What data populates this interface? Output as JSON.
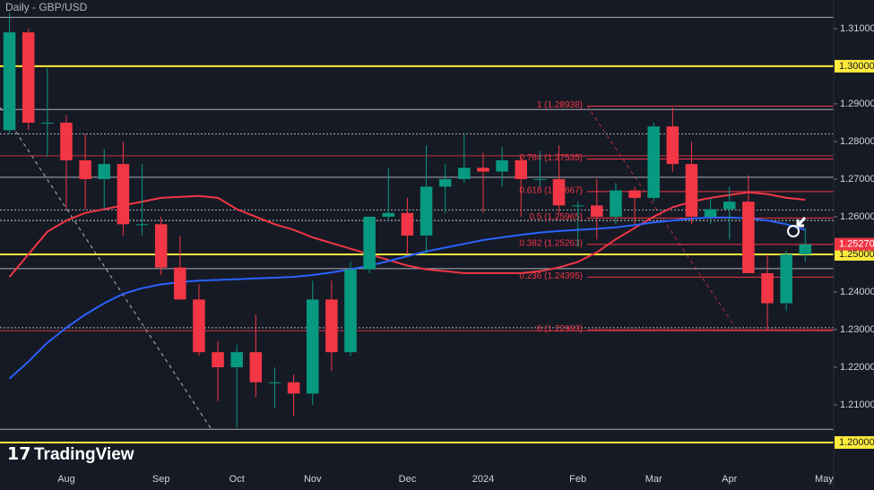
{
  "chart_data": {
    "type": "candlestick",
    "title": "Daily - GBP/USD",
    "brand": "TradingView",
    "ylim": [
      1.1938,
      1.3176
    ],
    "yticks": [
      {
        "value": 1.31,
        "label": "1.31000"
      },
      {
        "value": 1.29,
        "label": "1.29000"
      },
      {
        "value": 1.28,
        "label": "1.28000"
      },
      {
        "value": 1.27,
        "label": "1.27000"
      },
      {
        "value": 1.26,
        "label": "1.26000"
      },
      {
        "value": 1.24,
        "label": "1.24000"
      },
      {
        "value": 1.23,
        "label": "1.23000"
      },
      {
        "value": 1.22,
        "label": "1.22000"
      },
      {
        "value": 1.21,
        "label": "1.21000"
      }
    ],
    "levels": [
      {
        "value": 1.3,
        "label": "1.30000",
        "color": "#ffeb3b"
      },
      {
        "value": 1.25,
        "label": "1.25000",
        "color": "#ffeb3b"
      },
      {
        "value": 1.2,
        "label": "1.20000",
        "color": "#ffeb3b"
      }
    ],
    "lines": [
      {
        "value": 1.313,
        "color": "#d1d4dc",
        "style": "solid"
      },
      {
        "value": 1.2885,
        "color": "#d1d4dc",
        "style": "solid"
      },
      {
        "value": 1.282,
        "color": "#d1d4dc",
        "style": "dotted"
      },
      {
        "value": 1.2762,
        "color": "#f23645",
        "style": "solid"
      },
      {
        "value": 1.2705,
        "color": "#d1d4dc",
        "style": "solid"
      },
      {
        "value": 1.2618,
        "color": "#d1d4dc",
        "style": "dotted"
      },
      {
        "value": 1.259,
        "color": "#ffffff",
        "style": "dotted"
      },
      {
        "value": 1.2462,
        "color": "#d1d4dc",
        "style": "solid"
      },
      {
        "value": 1.2305,
        "color": "#d1d4dc",
        "style": "dotted"
      },
      {
        "value": 1.2297,
        "color": "#f23645",
        "style": "solid"
      },
      {
        "value": 1.2035,
        "color": "#d1d4dc",
        "style": "solid"
      }
    ],
    "fib_levels": [
      {
        "value": 1.28938,
        "label": "1 (1.28938)"
      },
      {
        "value": 1.27535,
        "label": "0.764 (1.27535)"
      },
      {
        "value": 1.26667,
        "label": "0.618 (1.26667)"
      },
      {
        "value": 1.25965,
        "label": "0.5 (1.25965)"
      },
      {
        "value": 1.25263,
        "label": "0.382 (1.25263)"
      },
      {
        "value": 1.24395,
        "label": "0.236 (1.24395)"
      },
      {
        "value": 1.22993,
        "label": "0 (1.22993)"
      }
    ],
    "last_price": {
      "value": 1.2527,
      "label": "1.25270",
      "color": "#f23645"
    },
    "up_color": "#089981",
    "down_color": "#f23645",
    "categories": [
      null,
      null,
      null,
      "Aug",
      null,
      null,
      null,
      null,
      "Sep",
      null,
      null,
      null,
      "Oct",
      null,
      null,
      null,
      "Nov",
      null,
      null,
      null,
      null,
      "Dec",
      null,
      null,
      null,
      "2024",
      null,
      null,
      null,
      null,
      "Feb",
      null,
      null,
      null,
      "Mar",
      null,
      null,
      null,
      "Apr",
      null,
      null,
      null,
      null,
      "May"
    ],
    "open": [
      1.283,
      1.309,
      1.285,
      1.285,
      1.275,
      1.27,
      1.274,
      1.258,
      1.258,
      1.2465,
      1.238,
      1.224,
      1.22,
      1.224,
      1.216,
      1.216,
      1.213,
      1.238,
      1.224,
      1.246,
      1.26,
      1.261,
      1.255,
      1.268,
      1.27,
      1.273,
      1.272,
      1.275,
      1.27,
      1.27,
      1.263,
      1.263,
      1.26,
      1.267,
      1.265,
      1.284,
      1.274,
      1.26,
      1.262,
      1.264,
      1.245,
      1.237,
      1.25,
      null
    ],
    "high": [
      1.3142,
      1.31,
      1.2995,
      1.287,
      1.282,
      1.278,
      1.28,
      1.274,
      1.26,
      1.255,
      1.242,
      1.227,
      1.226,
      1.234,
      1.22,
      1.218,
      1.243,
      1.243,
      1.248,
      1.26,
      1.273,
      1.265,
      1.279,
      1.274,
      1.282,
      1.277,
      1.2785,
      1.276,
      1.2775,
      1.279,
      1.264,
      1.27,
      1.269,
      1.268,
      1.285,
      1.289,
      1.28,
      1.265,
      1.268,
      1.271,
      1.25,
      1.251,
      1.257,
      null
    ],
    "low": [
      1.282,
      1.283,
      1.276,
      1.262,
      1.262,
      1.262,
      1.255,
      1.255,
      1.2445,
      1.238,
      1.223,
      1.211,
      1.204,
      1.212,
      1.209,
      1.207,
      1.21,
      1.219,
      1.223,
      1.245,
      1.259,
      1.25,
      1.25,
      1.261,
      1.269,
      1.261,
      1.268,
      1.26,
      1.268,
      1.261,
      1.252,
      1.254,
      1.258,
      1.258,
      1.264,
      1.272,
      1.258,
      1.258,
      1.254,
      1.245,
      1.23,
      1.235,
      1.248,
      null
    ],
    "close": [
      1.309,
      1.285,
      1.285,
      1.275,
      1.27,
      1.274,
      1.258,
      1.258,
      1.2465,
      1.238,
      1.224,
      1.22,
      1.224,
      1.216,
      1.216,
      1.213,
      1.238,
      1.224,
      1.246,
      1.26,
      1.261,
      1.255,
      1.268,
      1.27,
      1.273,
      1.272,
      1.275,
      1.27,
      1.27,
      1.263,
      1.263,
      1.26,
      1.267,
      1.265,
      1.284,
      1.274,
      1.26,
      1.262,
      1.264,
      1.245,
      1.237,
      1.25,
      1.2527,
      null
    ],
    "series": [
      {
        "color": "#f23645",
        "values": [
          1.244,
          1.25,
          1.256,
          1.259,
          1.261,
          1.262,
          1.263,
          1.264,
          1.265,
          1.2653,
          1.2655,
          1.265,
          1.262,
          1.26,
          1.258,
          1.2565,
          1.2545,
          1.253,
          1.2515,
          1.25,
          1.2485,
          1.247,
          1.246,
          1.2455,
          1.245,
          1.245,
          1.245,
          1.245,
          1.2455,
          1.2465,
          1.248,
          1.2505,
          1.254,
          1.257,
          1.26,
          1.2625,
          1.264,
          1.265,
          1.2658,
          1.2665,
          1.266,
          1.265,
          1.2645,
          null
        ]
      },
      {
        "color": "#2962ff",
        "values": [
          1.217,
          1.2215,
          1.2265,
          1.2305,
          1.234,
          1.237,
          1.2395,
          1.241,
          1.242,
          1.2426,
          1.243,
          1.2432,
          1.2434,
          1.2436,
          1.2438,
          1.244,
          1.2445,
          1.2452,
          1.246,
          1.247,
          1.2482,
          1.2495,
          1.2508,
          1.2518,
          1.2528,
          1.2538,
          1.2545,
          1.2552,
          1.2558,
          1.2562,
          1.2565,
          1.2568,
          1.2572,
          1.2578,
          1.2585,
          1.259,
          1.2595,
          1.2598,
          1.2598,
          1.2596,
          1.259,
          1.258,
          1.2565,
          null
        ]
      }
    ]
  }
}
